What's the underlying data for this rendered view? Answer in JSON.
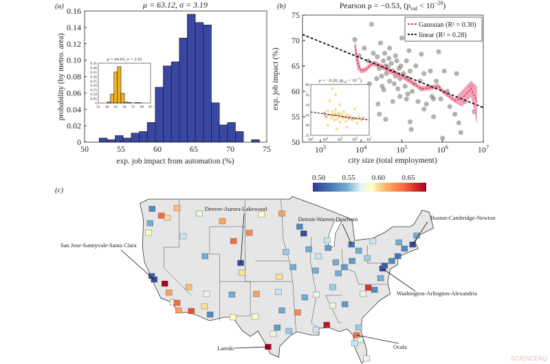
{
  "watermark": "SCIENCEAQ",
  "chart_data": [
    {
      "panel_label": "(a)",
      "type": "bar",
      "title": "μ = 63.12, σ = 3.19",
      "xlabel": "exp. job impact from automation (%)",
      "ylabel": "probability (by metro. area)",
      "xlim": [
        50,
        75
      ],
      "ylim": [
        0,
        0.16
      ],
      "xticks": [
        "50",
        "55",
        "60",
        "65",
        "70",
        "75"
      ],
      "yticks": [
        "0",
        "0.02",
        "0.04",
        "0.06",
        "0.08",
        "0.10",
        "0.12",
        "0.14",
        "0.16"
      ],
      "bar_color": "#3a47a0",
      "bin_start": 52,
      "bin_width": 1.1,
      "values": [
        0.005,
        0.003,
        0.008,
        0.005,
        0.011,
        0.013,
        0.024,
        0.067,
        0.093,
        0.098,
        0.127,
        0.156,
        0.146,
        0.143,
        0.048,
        0.021,
        0.024,
        0.013,
        0,
        0.003
      ],
      "inset": {
        "type": "bar",
        "title": "μ = 44.63, σ = 2.53",
        "xlim": [
          35,
          65
        ],
        "ylim": [
          0,
          0.45
        ],
        "xticks": [
          "35",
          "40",
          "45",
          "50",
          "55",
          "60",
          "65"
        ],
        "yticks": [
          "0",
          "0.05",
          "0.10",
          "0.15",
          "0.20",
          "0.25",
          "0.30",
          "0.35",
          "0.40",
          "0.45"
        ],
        "bar_color": "#f0b323",
        "bin_start": 40,
        "bin_width": 2,
        "values": [
          0.01,
          0.1,
          0.35,
          0.41,
          0.11,
          0.01,
          0.005,
          0,
          0.005,
          0.003
        ]
      }
    },
    {
      "panel_label": "(b)",
      "type": "scatter",
      "title": {
        "pre": "Pearson ρ = −0.53, (p",
        "sub": "val",
        "mid": " < 10",
        "sup": "−28",
        "post": ")"
      },
      "xlabel": "city size (total employment)",
      "ylabel": "exp. job impact (%)",
      "xscale": "log",
      "xlim": [
        360,
        10000000
      ],
      "ylim": [
        50,
        75
      ],
      "xticks": [
        {
          "base": "10",
          "exp": "3",
          "value": 1000
        },
        {
          "base": "10",
          "exp": "4",
          "value": 10000
        },
        {
          "base": "10",
          "exp": "5",
          "value": 100000
        },
        {
          "base": "10",
          "exp": "6",
          "value": 1000000
        },
        {
          "base": "10",
          "exp": "7",
          "value": 10000000
        }
      ],
      "yticks": [
        "50",
        "55",
        "60",
        "65",
        "70",
        "75"
      ],
      "legend": {
        "position": "top-right",
        "items": [
          {
            "label": "Gaussian (R² = 0.30)",
            "color": "#e0305a",
            "style": "dashed"
          },
          {
            "label": "linear (R² = 0.28)",
            "color": "#111111",
            "style": "dashed"
          }
        ]
      },
      "point_color": "#555555",
      "points": [
        [
          7000,
          70.2
        ],
        [
          18000,
          73.2
        ],
        [
          9000,
          67
        ],
        [
          12000,
          68.5
        ],
        [
          15000,
          66
        ],
        [
          20000,
          67.5
        ],
        [
          22000,
          65.5
        ],
        [
          25000,
          66.8
        ],
        [
          28000,
          64.5
        ],
        [
          30000,
          69.5
        ],
        [
          32000,
          63
        ],
        [
          35000,
          66
        ],
        [
          38000,
          67.5
        ],
        [
          40000,
          65
        ],
        [
          42000,
          63.5
        ],
        [
          45000,
          64.8
        ],
        [
          48000,
          66.5
        ],
        [
          50000,
          62
        ],
        [
          55000,
          65.5
        ],
        [
          60000,
          64
        ],
        [
          65000,
          61.5
        ],
        [
          70000,
          63
        ],
        [
          75000,
          66
        ],
        [
          80000,
          60.5
        ],
        [
          85000,
          64.5
        ],
        [
          90000,
          62.5
        ],
        [
          95000,
          65
        ],
        [
          100000,
          70.5
        ],
        [
          110000,
          63.5
        ],
        [
          120000,
          61
        ],
        [
          130000,
          66
        ],
        [
          140000,
          59.5
        ],
        [
          150000,
          62.5
        ],
        [
          160000,
          64
        ],
        [
          180000,
          60
        ],
        [
          200000,
          61.5
        ],
        [
          220000,
          65
        ],
        [
          250000,
          58
        ],
        [
          280000,
          62
        ],
        [
          300000,
          60.5
        ],
        [
          350000,
          63.5
        ],
        [
          400000,
          57.5
        ],
        [
          450000,
          61
        ],
        [
          500000,
          64
        ],
        [
          550000,
          59
        ],
        [
          600000,
          55
        ],
        [
          700000,
          62
        ],
        [
          800000,
          67.8
        ],
        [
          900000,
          58.5
        ],
        [
          1000000,
          50.8
        ],
        [
          1100000,
          64
        ],
        [
          1300000,
          60
        ],
        [
          1500000,
          57
        ],
        [
          2000000,
          55.5
        ],
        [
          2200000,
          63.5
        ],
        [
          2500000,
          53.8
        ],
        [
          2800000,
          51.9
        ],
        [
          3500000,
          58
        ],
        [
          5000000,
          61
        ],
        [
          6000000,
          56
        ],
        [
          40000,
          54.5
        ],
        [
          28000,
          55.5
        ],
        [
          160000,
          54
        ],
        [
          170000,
          52.5
        ],
        [
          350000,
          56.5
        ],
        [
          26000,
          57.5
        ],
        [
          60000,
          58
        ],
        [
          90000,
          59
        ],
        [
          33000,
          61
        ],
        [
          24000,
          62.5
        ],
        [
          36000,
          60.3
        ],
        [
          70000,
          67
        ],
        [
          130000,
          58.5
        ],
        [
          600000,
          58.5
        ],
        [
          50000,
          68.5
        ],
        [
          300000,
          67.3
        ],
        [
          150000,
          68
        ],
        [
          16000,
          61.5
        ]
      ],
      "gaussian_fit": {
        "color": "#e0305a",
        "band_color": "#f08fa5",
        "x": [
          7000,
          8000,
          10000,
          13000,
          17000,
          20000,
          30000,
          50000,
          100000,
          200000,
          300000,
          500000,
          800000,
          1000000,
          1500000,
          2000000,
          3000000,
          5000000,
          7000000
        ],
        "y": [
          69,
          66,
          64,
          64.3,
          65.2,
          65.5,
          65,
          64,
          63,
          61.5,
          60.5,
          60.7,
          61,
          60,
          59,
          58.2,
          58.6,
          60.5,
          58
        ]
      },
      "linear_fit": {
        "color": "#111111",
        "x": [
          360,
          10000000
        ],
        "y": [
          71.2,
          56.8
        ]
      },
      "inset": {
        "title": {
          "pre": "ρ = −0.26, (p",
          "sub": "val",
          "mid": " < 10",
          "sup": "−7",
          "post": ")"
        },
        "xscale": "log",
        "xlim": [
          1000,
          10000000
        ],
        "ylim": [
          35,
          60
        ],
        "xticks": [
          {
            "base": "10",
            "exp": "3"
          },
          {
            "base": "10",
            "exp": "4"
          },
          {
            "base": "10",
            "exp": "5"
          },
          {
            "base": "10",
            "exp": "6"
          },
          {
            "base": "10",
            "exp": "7"
          }
        ],
        "yticks": [
          "35",
          "40",
          "45",
          "50",
          "55",
          "60"
        ],
        "point_color": "#f0b323",
        "points": [
          [
            9000,
            46
          ],
          [
            12000,
            44
          ],
          [
            15000,
            47
          ],
          [
            20000,
            45
          ],
          [
            25000,
            43.5
          ],
          [
            30000,
            46.5
          ],
          [
            35000,
            44.5
          ],
          [
            40000,
            42.5
          ],
          [
            45000,
            45.5
          ],
          [
            50000,
            47.5
          ],
          [
            60000,
            43
          ],
          [
            70000,
            45
          ],
          [
            80000,
            46
          ],
          [
            90000,
            44
          ],
          [
            100000,
            41.5
          ],
          [
            120000,
            45.5
          ],
          [
            150000,
            43.5
          ],
          [
            180000,
            46.5
          ],
          [
            200000,
            44
          ],
          [
            250000,
            42
          ],
          [
            300000,
            45
          ],
          [
            400000,
            43
          ],
          [
            500000,
            44.5
          ],
          [
            700000,
            42.5
          ],
          [
            1000000,
            43.5
          ],
          [
            1500000,
            41
          ],
          [
            2000000,
            44
          ],
          [
            3000000,
            42.5
          ],
          [
            20000,
            52
          ],
          [
            50000,
            55
          ],
          [
            100000,
            50
          ],
          [
            30000,
            58
          ],
          [
            15000,
            40
          ],
          [
            300000,
            39
          ],
          [
            1000000,
            48
          ],
          [
            60000,
            38
          ]
        ],
        "gaussian_fit": {
          "x": [
            8000,
            10000,
            15000,
            30000,
            100000,
            300000,
            1000000,
            2000000,
            4000000,
            7000000
          ],
          "y": [
            46.5,
            44,
            45.2,
            45,
            44.5,
            43.5,
            43,
            43,
            44,
            42.5
          ]
        },
        "linear_fit": {
          "x": [
            1000,
            10000000
          ],
          "y": [
            46.5,
            42.5
          ]
        }
      }
    },
    {
      "panel_label": "(c)",
      "type": "heatmap",
      "colorbar": {
        "ticks": [
          "0.50",
          "0.55",
          "0.60",
          "0.65"
        ],
        "range": [
          0.49,
          0.68
        ],
        "colormap": "RdYlBu_r"
      },
      "annotations": [
        "Denver-Aurora-Lakewood",
        "Detroit-Warren-Dearborn",
        "Boston-Cambridge-Newton",
        "San Jose-Sunnyvale-Santa Clara",
        "Washington-Arlington-Alexandria",
        "Laredo",
        "Ocala"
      ],
      "regions": [
        [
          -122.3,
          47.6,
          0.53
        ],
        [
          -122.7,
          45.5,
          0.55
        ],
        [
          -117.4,
          47.7,
          0.61
        ],
        [
          -116.2,
          43.6,
          0.57
        ],
        [
          -111.9,
          40.7,
          0.55
        ],
        [
          -104.9,
          39.7,
          0.5
        ],
        [
          -122.4,
          37.8,
          0.51
        ],
        [
          -121.9,
          37.3,
          0.5
        ],
        [
          -119.8,
          36.7,
          0.68
        ],
        [
          -119,
          35.4,
          0.62
        ],
        [
          -118.2,
          34,
          0.58
        ],
        [
          -117.1,
          32.8,
          0.62
        ],
        [
          -117.4,
          33.9,
          0.64
        ],
        [
          -115.1,
          36.2,
          0.61
        ],
        [
          -112,
          33.4,
          0.6
        ],
        [
          -110.9,
          32.2,
          0.53
        ],
        [
          -106.6,
          35.1,
          0.55
        ],
        [
          -106.4,
          31.8,
          0.59
        ],
        [
          -96.8,
          32.8,
          0.55
        ],
        [
          -95.4,
          29.8,
          0.56
        ],
        [
          -97.7,
          30.3,
          0.54
        ],
        [
          -98.5,
          29.4,
          0.58
        ],
        [
          -99.5,
          27.5,
          0.68
        ],
        [
          -97.5,
          35.5,
          0.57
        ],
        [
          -94.6,
          39.1,
          0.55
        ],
        [
          -97.3,
          37.7,
          0.6
        ],
        [
          -96,
          41.3,
          0.56
        ],
        [
          -93.3,
          45,
          0.53
        ],
        [
          -92.5,
          44,
          0.5
        ],
        [
          -96.8,
          46.9,
          0.62
        ],
        [
          -103.2,
          44.1,
          0.63
        ],
        [
          -108.5,
          45.8,
          0.62
        ],
        [
          -106.3,
          42.9,
          0.64
        ],
        [
          -87.7,
          41.9,
          0.54
        ],
        [
          -87.9,
          43,
          0.57
        ],
        [
          -83.1,
          42.4,
          0.52
        ],
        [
          -86.2,
          39.8,
          0.55
        ],
        [
          -83,
          40,
          0.54
        ],
        [
          -90.2,
          38.6,
          0.55
        ],
        [
          -86.8,
          36.2,
          0.56
        ],
        [
          -90,
          35.1,
          0.58
        ],
        [
          -84.4,
          33.7,
          0.54
        ],
        [
          -86.8,
          33.5,
          0.58
        ],
        [
          -90.1,
          30,
          0.57
        ],
        [
          -88,
          30.7,
          0.67
        ],
        [
          -81.7,
          30.3,
          0.56
        ],
        [
          -82.1,
          29.2,
          0.64
        ],
        [
          -81.4,
          28.5,
          0.58
        ],
        [
          -82.5,
          28,
          0.57
        ],
        [
          -80.2,
          25.8,
          0.58
        ],
        [
          -80.8,
          35.2,
          0.58
        ],
        [
          -78.6,
          35.8,
          0.53
        ],
        [
          -79.8,
          36.1,
          0.66
        ],
        [
          -77.4,
          37.5,
          0.55
        ],
        [
          -77,
          38.9,
          0.5
        ],
        [
          -76.6,
          39.3,
          0.51
        ],
        [
          -75.2,
          40,
          0.53
        ],
        [
          -74,
          40.7,
          0.52
        ],
        [
          -72.7,
          41.8,
          0.53
        ],
        [
          -71.1,
          42.4,
          0.5
        ],
        [
          -73.8,
          42.7,
          0.55
        ],
        [
          -80,
          40.4,
          0.56
        ],
        [
          -78.9,
          42.9,
          0.57
        ],
        [
          -70.3,
          43.7,
          0.55
        ],
        [
          -100.8,
          46.8,
          0.59
        ],
        [
          -113,
          46.9,
          0.58
        ],
        [
          -104.6,
          38.3,
          0.6
        ],
        [
          -101.8,
          35.2,
          0.62
        ],
        [
          -102,
          31.9,
          0.59
        ],
        [
          -92.3,
          34.7,
          0.55
        ],
        [
          -93.7,
          32.5,
          0.63
        ],
        [
          -85.7,
          38.2,
          0.55
        ],
        [
          -84.5,
          39.1,
          0.54
        ],
        [
          -81.7,
          41.5,
          0.55
        ],
        [
          -89.6,
          40.7,
          0.57
        ],
        [
          -91.5,
          41.7,
          0.55
        ],
        [
          -111.6,
          35.2,
          0.58
        ],
        [
          -114.6,
          32.7,
          0.65
        ],
        [
          -120.5,
          46.6,
          0.64
        ],
        [
          -119.3,
          46.3,
          0.6
        ],
        [
          -123,
          44.1,
          0.59
        ]
      ]
    }
  ]
}
